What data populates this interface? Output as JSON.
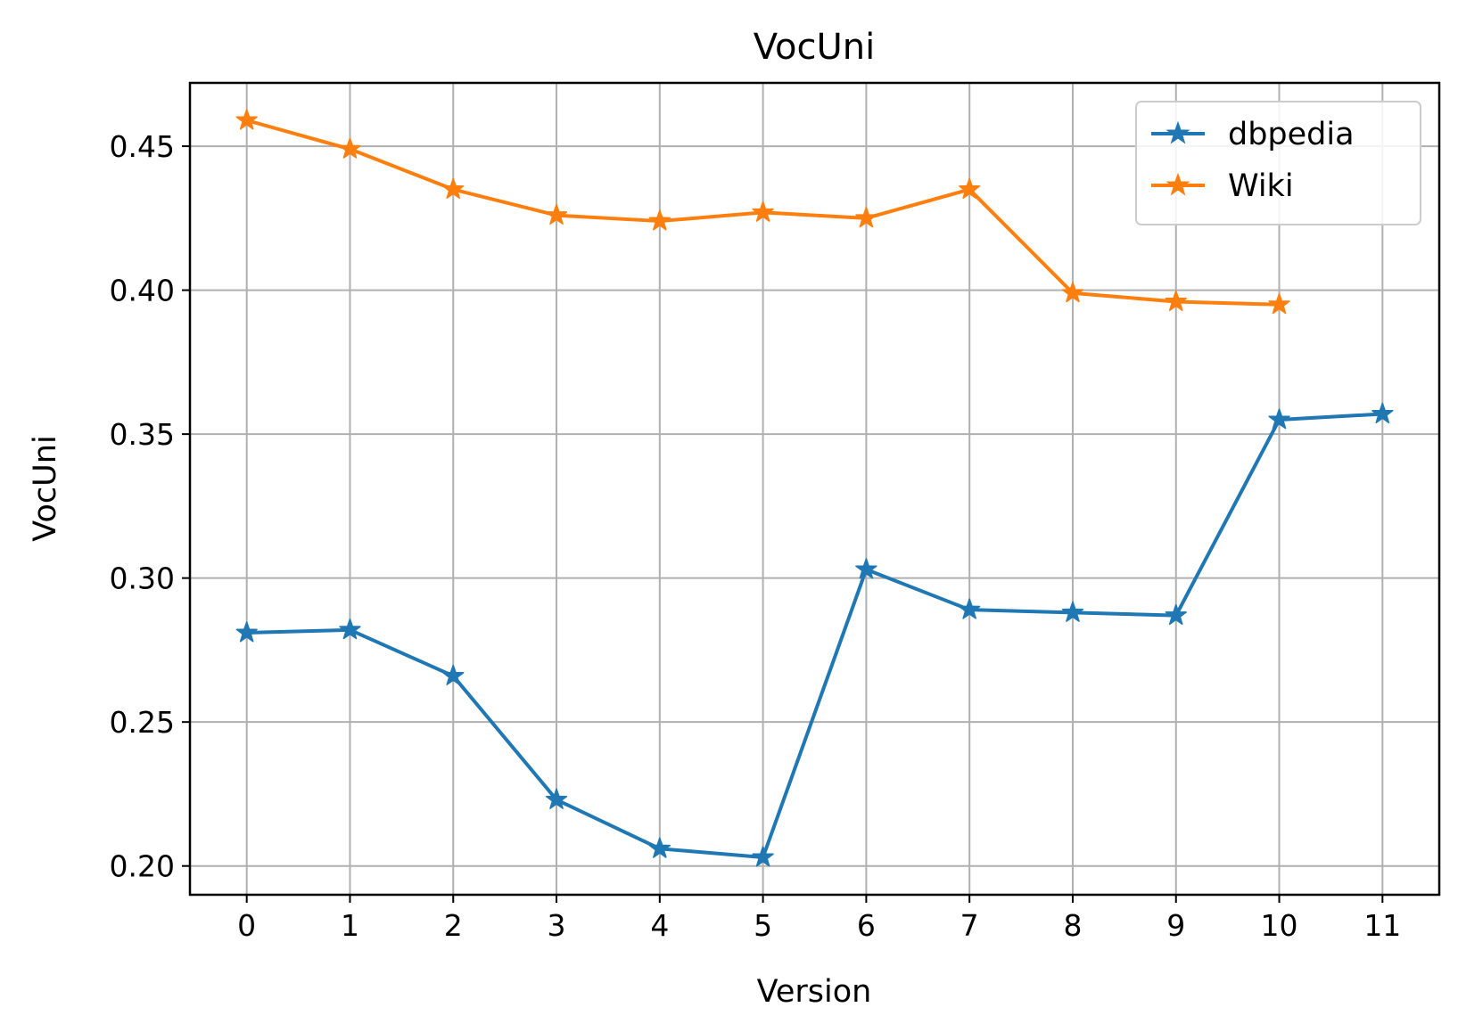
{
  "chart_data": {
    "type": "line",
    "title": "VocUni",
    "xlabel": "Version",
    "ylabel": "VocUni",
    "x": [
      0,
      1,
      2,
      3,
      4,
      5,
      6,
      7,
      8,
      9,
      10,
      11
    ],
    "xticks": [
      "0",
      "1",
      "2",
      "3",
      "4",
      "5",
      "6",
      "7",
      "8",
      "9",
      "10",
      "11"
    ],
    "yticks": [
      "0.20",
      "0.25",
      "0.30",
      "0.35",
      "0.40",
      "0.45"
    ],
    "xlim": [
      -0.55,
      11.55
    ],
    "ylim": [
      0.19,
      0.472
    ],
    "grid": true,
    "legend": "top-right",
    "series": [
      {
        "name": "dbpedia",
        "color": "#1f77b4",
        "marker": "star",
        "x": [
          0,
          1,
          2,
          3,
          4,
          5,
          6,
          7,
          8,
          9,
          10,
          11
        ],
        "values": [
          0.281,
          0.282,
          0.266,
          0.223,
          0.206,
          0.203,
          0.303,
          0.289,
          0.288,
          0.287,
          0.355,
          0.357
        ]
      },
      {
        "name": "Wiki",
        "color": "#ff7f0e",
        "marker": "star",
        "x": [
          0,
          1,
          2,
          3,
          4,
          5,
          6,
          7,
          8,
          9,
          10
        ],
        "values": [
          0.459,
          0.449,
          0.435,
          0.426,
          0.424,
          0.427,
          0.425,
          0.435,
          0.399,
          0.396,
          0.395
        ]
      }
    ]
  }
}
